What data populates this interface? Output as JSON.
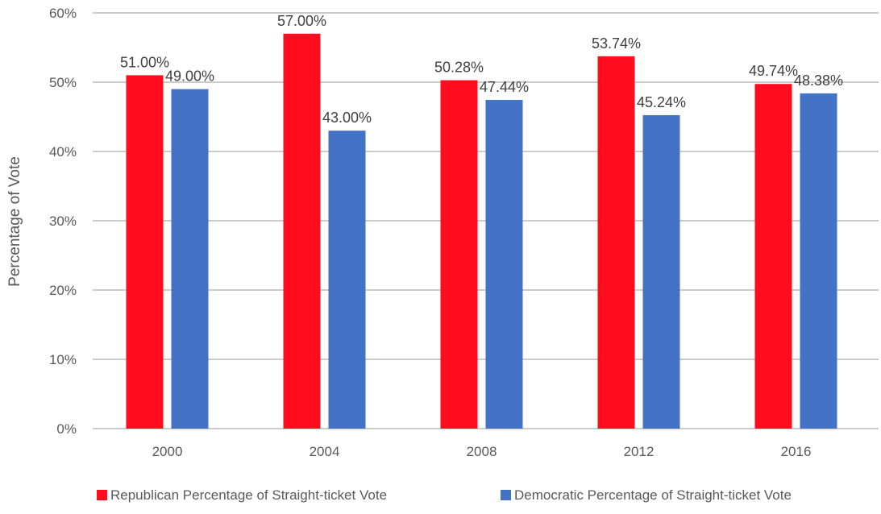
{
  "chart_data": {
    "type": "bar",
    "title": "",
    "xlabel": "",
    "ylabel": "Percentage of Vote",
    "categories": [
      "2000",
      "2004",
      "2008",
      "2012",
      "2016"
    ],
    "series": [
      {
        "name": "Republican Percentage of Straight-ticket Vote",
        "values": [
          51.0,
          57.0,
          50.28,
          53.74,
          49.74
        ],
        "labels": [
          "51.00%",
          "57.00%",
          "50.28%",
          "53.74%",
          "49.74%"
        ],
        "color": "#ff0d1f"
      },
      {
        "name": "Democratic Percentage of Straight-ticket Vote",
        "values": [
          49.0,
          43.0,
          47.44,
          45.24,
          48.38
        ],
        "labels": [
          "49.00%",
          "43.00%",
          "47.44%",
          "45.24%",
          "48.38%"
        ],
        "color": "#4472c4"
      }
    ],
    "ylim": [
      0,
      60
    ],
    "yticks": [
      "0%",
      "10%",
      "20%",
      "30%",
      "40%",
      "50%",
      "60%"
    ],
    "grid": true,
    "legend_position": "bottom"
  }
}
